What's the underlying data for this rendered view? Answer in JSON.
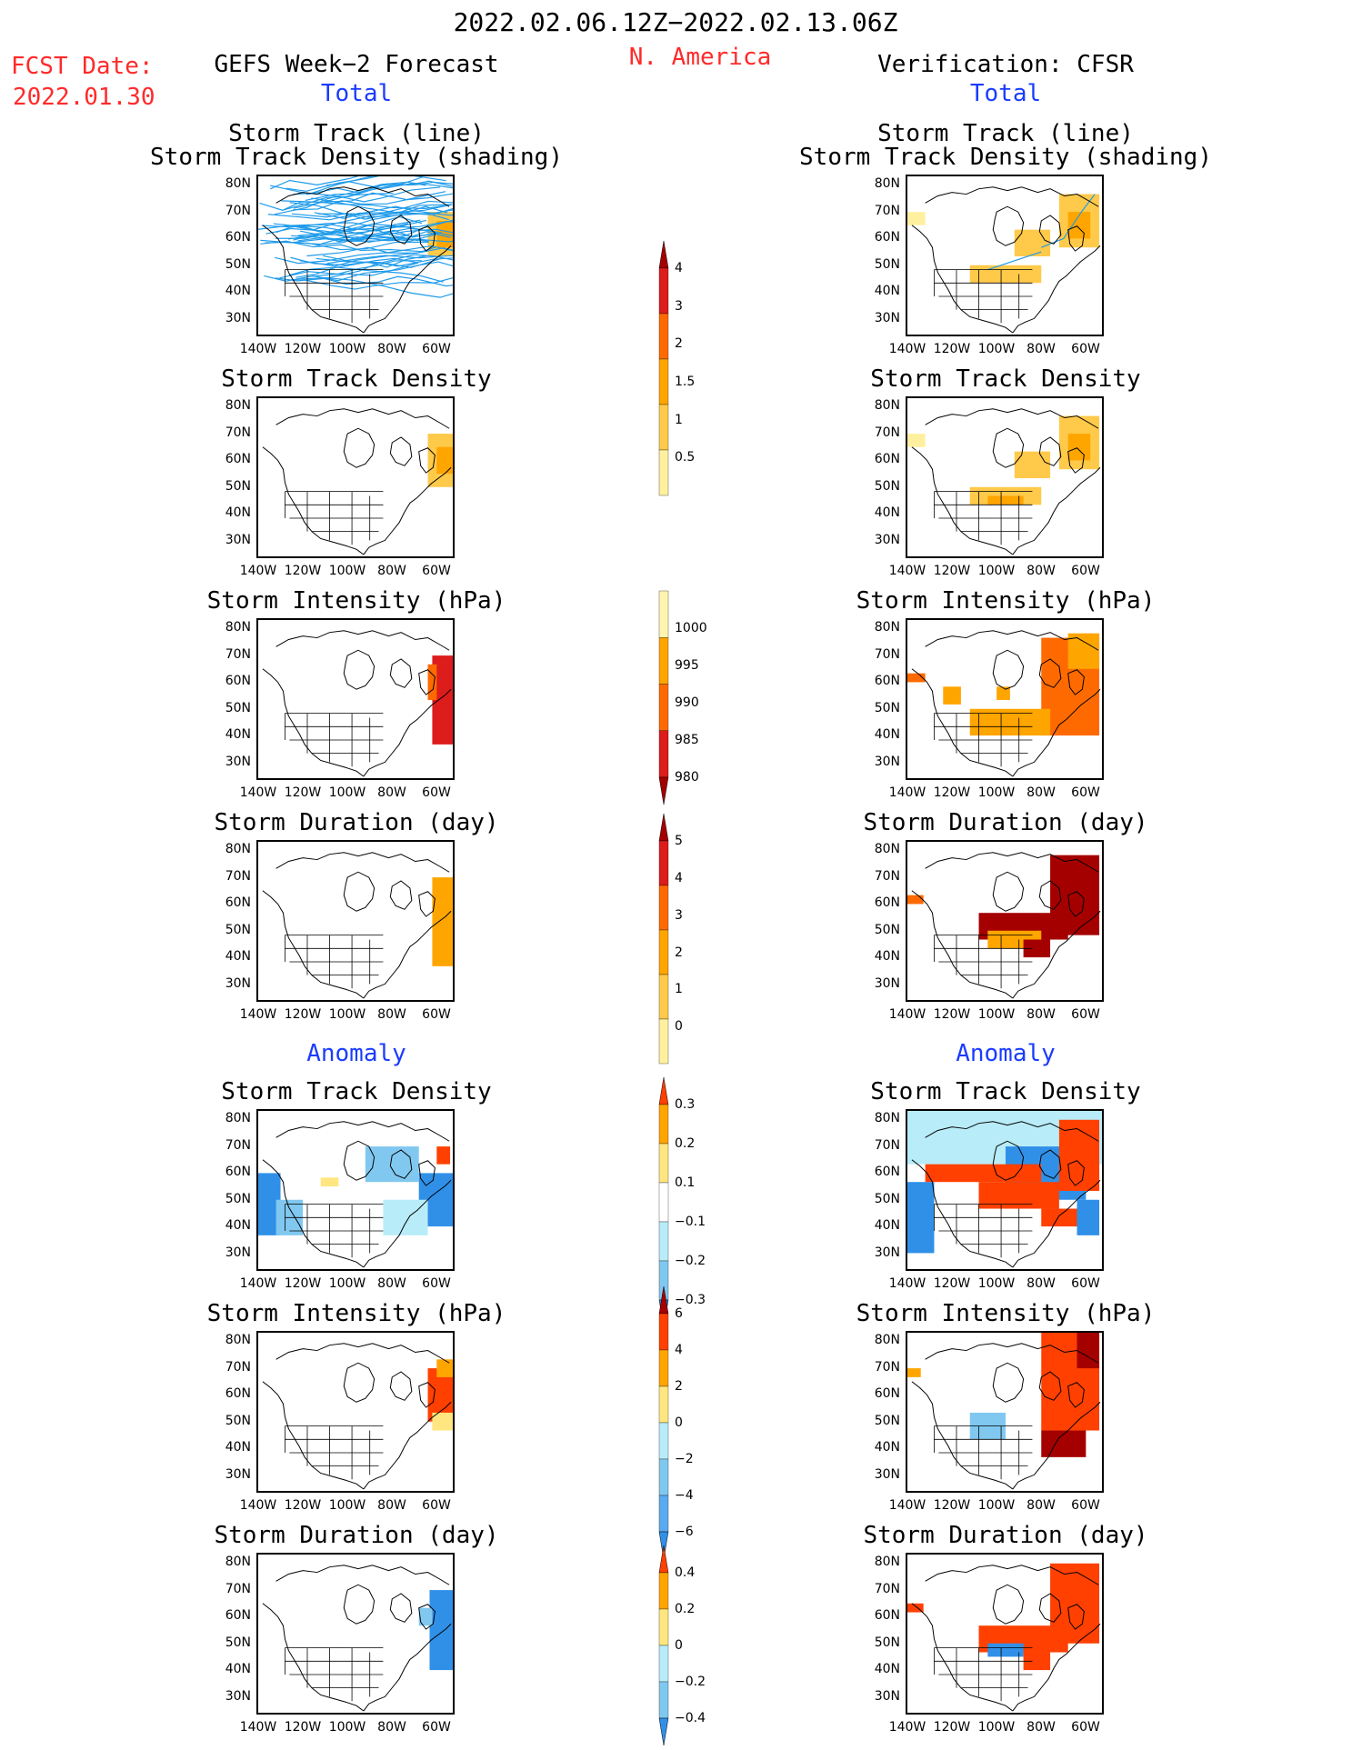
{
  "header": {
    "date_range": "2022.02.06.12Z−2022.02.13.06Z",
    "region": "N. America",
    "fcst_date_label": "FCST Date:",
    "fcst_date_value": "2022.01.30",
    "left_title": "GEFS Week−2 Forecast",
    "right_title": "Verification: CFSR",
    "left_subtitle": "Total",
    "right_subtitle": "Total",
    "anomaly_left": "Anomaly",
    "anomaly_right": "Anomaly"
  },
  "panels": {
    "track_title_1": "Storm Track (line)",
    "track_title_2": "Storm Track Density (shading)",
    "density": "Storm Track Density",
    "intensity": "Storm Intensity (hPa)",
    "duration": "Storm Duration (day)"
  },
  "axes": {
    "lat": [
      "80N",
      "70N",
      "60N",
      "50N",
      "40N",
      "30N"
    ],
    "lon": [
      "140W",
      "120W",
      "100W",
      "80W",
      "60W"
    ]
  },
  "colorbars": [
    {
      "id": "density-total",
      "labels": [
        "4",
        "3",
        "2",
        "1.5",
        "1",
        "0.5"
      ],
      "colors": [
        "#a50000",
        "#dd1c1c",
        "#ff6a00",
        "#ffa500",
        "#ffc94a",
        "#fff0a0"
      ],
      "tips": "top-only"
    },
    {
      "id": "intensity-total",
      "labels": [
        "1000",
        "995",
        "990",
        "985",
        "980"
      ],
      "colors": [
        "#fff5b0",
        "#ffa500",
        "#ff6a00",
        "#dd1c1c",
        "#a50000"
      ],
      "tips": "bottom-only"
    },
    {
      "id": "duration-total",
      "labels": [
        "5",
        "4",
        "3",
        "2",
        "1",
        "0"
      ],
      "colors": [
        "#a50000",
        "#dd1c1c",
        "#ff6a00",
        "#ffa500",
        "#ffc94a",
        "#fff0a0"
      ],
      "tips": "top-only"
    },
    {
      "id": "density-anom",
      "labels": [
        "0.3",
        "0.2",
        "0.1",
        "−0.1",
        "−0.2",
        "−0.3"
      ],
      "colors": [
        "#ff4000",
        "#ffa500",
        "#ffe680",
        "#ffffff",
        "#b8ecf8",
        "#80c8f0",
        "#3090e8"
      ],
      "tips": "both"
    },
    {
      "id": "intensity-anom",
      "labels": [
        "6",
        "4",
        "2",
        "0",
        "−2",
        "−4",
        "−6"
      ],
      "colors": [
        "#a50000",
        "#ff4000",
        "#ffa500",
        "#ffe680",
        "#b8ecf8",
        "#80c8f0",
        "#5aaaf0",
        "#3090e8"
      ],
      "tips": "both"
    },
    {
      "id": "duration-anom",
      "labels": [
        "0.4",
        "0.2",
        "0",
        "−0.2",
        "−0.4"
      ],
      "colors": [
        "#ff4000",
        "#ffa500",
        "#ffe680",
        "#b8ecf8",
        "#80c8f0",
        "#3090e8"
      ],
      "tips": "both"
    }
  ],
  "colors": {
    "title_red": "#ff2a2a",
    "subtitle_blue": "#1a3cff",
    "track_line": "#1f9bea"
  }
}
